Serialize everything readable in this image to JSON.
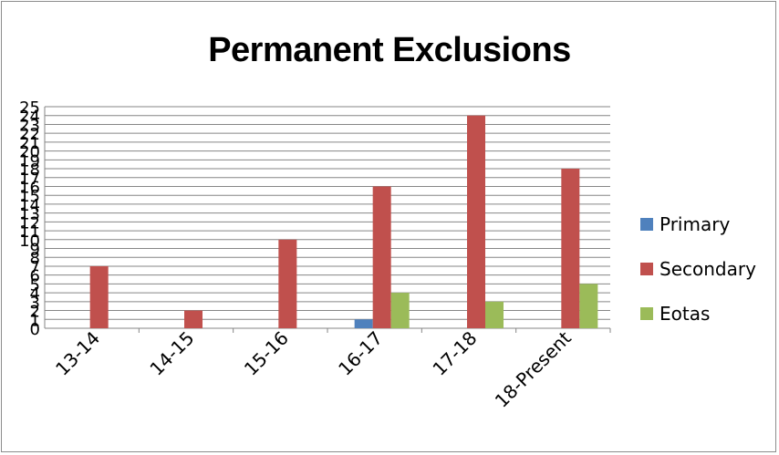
{
  "chart_data": {
    "type": "bar",
    "title": "Permanent Exclusions",
    "categories": [
      "13-14",
      "14-15",
      "15-16",
      "16-17",
      "17-18",
      "18-Present"
    ],
    "series": [
      {
        "name": "Primary",
        "color": "#4f81bd",
        "values": [
          0,
          0,
          0,
          1,
          0,
          0
        ]
      },
      {
        "name": "Secondary",
        "color": "#c0504d",
        "values": [
          7,
          2,
          10,
          16,
          24,
          18
        ]
      },
      {
        "name": "Eotas",
        "color": "#9bbb59",
        "values": [
          0,
          0,
          0,
          4,
          3,
          5
        ]
      }
    ],
    "ylim": [
      0,
      25
    ],
    "ytick_step": 1,
    "grid": true,
    "legend_position": "right"
  }
}
